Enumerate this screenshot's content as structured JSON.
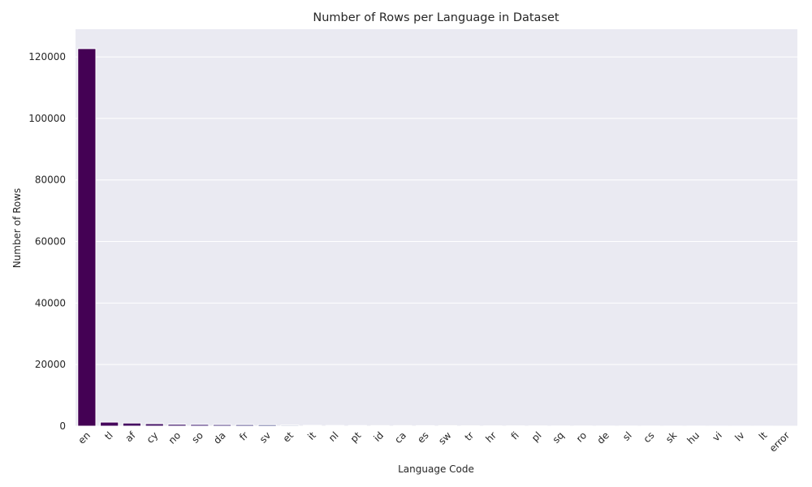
{
  "chart_data": {
    "type": "bar",
    "title": "Number of Rows per Language in Dataset",
    "xlabel": "Language Code",
    "ylabel": "Number of Rows",
    "categories": [
      "en",
      "tl",
      "af",
      "cy",
      "no",
      "so",
      "da",
      "fr",
      "sv",
      "et",
      "it",
      "nl",
      "pt",
      "id",
      "ca",
      "es",
      "sw",
      "tr",
      "hr",
      "fi",
      "pl",
      "sq",
      "ro",
      "de",
      "sl",
      "cs",
      "sk",
      "hu",
      "vi",
      "lv",
      "lt",
      "error"
    ],
    "values": [
      122700,
      1300,
      1000,
      800,
      600,
      550,
      500,
      480,
      450,
      300,
      250,
      220,
      200,
      180,
      170,
      160,
      150,
      120,
      100,
      90,
      80,
      70,
      60,
      50,
      45,
      40,
      35,
      30,
      25,
      20,
      15,
      5
    ],
    "ylim": [
      0,
      129000
    ],
    "yticks": [
      0,
      20000,
      40000,
      60000,
      80000,
      100000,
      120000
    ],
    "grid": true,
    "background": "#eaeaf2",
    "palette": "viridis",
    "colors": [
      "#440154",
      "#46085c",
      "#471063",
      "#48186a",
      "#482071",
      "#472878",
      "#46307e",
      "#443983",
      "#414487",
      "#3e4c8a",
      "#3b528b",
      "#375a8c",
      "#33638d",
      "#306a8e",
      "#2d718e",
      "#2a778e",
      "#287d8e",
      "#25848e",
      "#228b8d",
      "#20928c",
      "#1f988b",
      "#21a685",
      "#25ac82",
      "#2fb47c",
      "#3bbb75",
      "#4ac16d",
      "#5ac864",
      "#6ccd5a",
      "#84d44b",
      "#9bd93c",
      "#bade28",
      "#dde318"
    ]
  }
}
